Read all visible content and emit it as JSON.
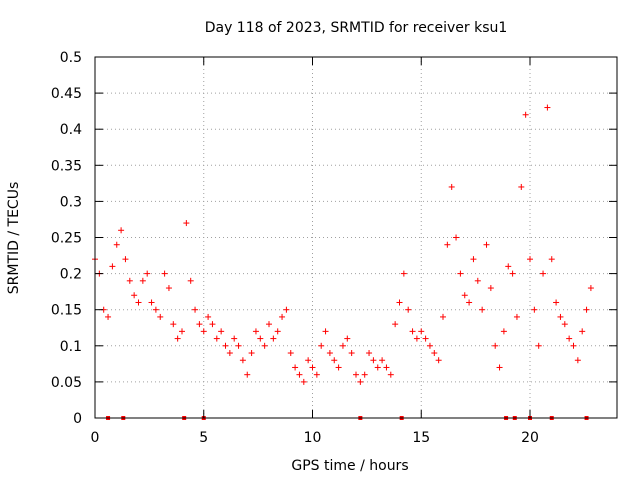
{
  "chart_data": {
    "type": "scatter",
    "title": "Day 118 of 2023, SRMTID for receiver ksu1",
    "xlabel": "GPS time / hours",
    "ylabel": "SRMTID / TECUs",
    "xlim": [
      0,
      24
    ],
    "ylim": [
      0,
      0.5
    ],
    "x_ticks": [
      0,
      5,
      10,
      15,
      20
    ],
    "x_tick_labels": [
      "0",
      "5",
      "10",
      "15",
      "20"
    ],
    "y_ticks": [
      0,
      0.05,
      0.1,
      0.15,
      0.2,
      0.25,
      0.3,
      0.35,
      0.4,
      0.45,
      0.5
    ],
    "y_tick_labels": [
      "0",
      "0.05",
      "0.1",
      "0.15",
      "0.2",
      "0.25",
      "0.3",
      "0.35",
      "0.4",
      "0.45",
      "0.5"
    ],
    "grid": true,
    "marker": "+",
    "color": "#ff0000",
    "series": [
      {
        "name": "SRMTID",
        "x": [
          0.0,
          0.2,
          0.4,
          0.6,
          0.8,
          1.0,
          1.2,
          1.4,
          1.6,
          1.8,
          2.0,
          2.2,
          2.4,
          2.6,
          2.8,
          3.0,
          3.2,
          3.4,
          3.6,
          3.8,
          4.0,
          4.2,
          4.4,
          4.6,
          4.8,
          5.0,
          5.2,
          5.4,
          5.6,
          5.8,
          6.0,
          6.2,
          6.4,
          6.6,
          6.8,
          7.0,
          7.2,
          7.4,
          7.6,
          7.8,
          8.0,
          8.2,
          8.4,
          8.6,
          8.8,
          9.0,
          9.2,
          9.4,
          9.6,
          9.8,
          10.0,
          10.2,
          10.4,
          10.6,
          10.8,
          11.0,
          11.2,
          11.4,
          11.6,
          11.8,
          12.0,
          12.2,
          12.4,
          12.6,
          12.8,
          13.0,
          13.2,
          13.4,
          13.6,
          13.8,
          14.0,
          14.2,
          14.4,
          14.6,
          14.8,
          15.0,
          15.2,
          15.4,
          15.6,
          15.8,
          16.0,
          16.2,
          16.4,
          16.6,
          16.8,
          17.0,
          17.2,
          17.4,
          17.6,
          17.8,
          18.0,
          18.2,
          18.4,
          18.6,
          18.8,
          19.0,
          19.2,
          19.4,
          19.6,
          19.8,
          20.0,
          20.2,
          20.4,
          20.6,
          20.8,
          21.0,
          21.2,
          21.4,
          21.6,
          21.8,
          22.0,
          22.2,
          22.4,
          22.6,
          22.8
        ],
        "y": [
          0.22,
          0.2,
          0.15,
          0.14,
          0.21,
          0.24,
          0.26,
          0.22,
          0.19,
          0.17,
          0.16,
          0.19,
          0.2,
          0.16,
          0.15,
          0.14,
          0.2,
          0.18,
          0.13,
          0.11,
          0.12,
          0.27,
          0.19,
          0.15,
          0.13,
          0.12,
          0.14,
          0.13,
          0.11,
          0.12,
          0.1,
          0.09,
          0.11,
          0.1,
          0.08,
          0.06,
          0.09,
          0.12,
          0.11,
          0.1,
          0.13,
          0.11,
          0.12,
          0.14,
          0.15,
          0.09,
          0.07,
          0.06,
          0.05,
          0.08,
          0.07,
          0.06,
          0.1,
          0.12,
          0.09,
          0.08,
          0.07,
          0.1,
          0.11,
          0.09,
          0.06,
          0.05,
          0.06,
          0.09,
          0.08,
          0.07,
          0.08,
          0.07,
          0.06,
          0.13,
          0.16,
          0.2,
          0.15,
          0.12,
          0.11,
          0.12,
          0.11,
          0.1,
          0.09,
          0.08,
          0.14,
          0.24,
          0.32,
          0.25,
          0.2,
          0.17,
          0.16,
          0.22,
          0.19,
          0.15,
          0.24,
          0.18,
          0.1,
          0.07,
          0.12,
          0.21,
          0.2,
          0.14,
          0.32,
          0.42,
          0.22,
          0.15,
          0.1,
          0.2,
          0.43,
          0.22,
          0.16,
          0.14,
          0.13,
          0.11,
          0.1,
          0.08,
          0.12,
          0.15,
          0.18
        ]
      }
    ],
    "x_markers": [
      0.6,
      1.3,
      4.1,
      5.0,
      12.2,
      14.1,
      18.9,
      19.3,
      20.0,
      21.0,
      22.6
    ]
  }
}
